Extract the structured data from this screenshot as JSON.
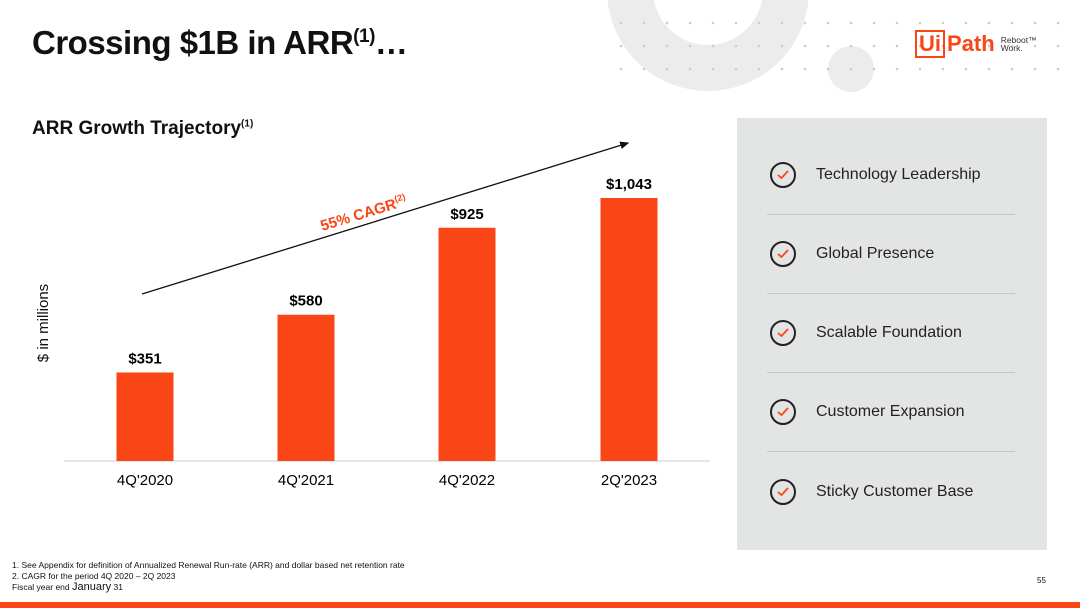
{
  "header": {
    "title": "Crossing $1B in ARR",
    "title_sup": "(1)",
    "title_suffix": "…"
  },
  "logo": {
    "ui": "Ui",
    "path": "Path",
    "tagline1": "Reboot™",
    "tagline2": "Work."
  },
  "chart_data": {
    "type": "bar",
    "title": "ARR Growth Trajectory",
    "title_sup": "(1)",
    "ylabel": "$ in millions",
    "categories": [
      "4Q'2020",
      "4Q'2021",
      "4Q'2022",
      "2Q'2023"
    ],
    "values": [
      351,
      580,
      925,
      1043
    ],
    "data_labels": [
      "$351",
      "$580",
      "$925",
      "$1,043"
    ],
    "annotation": "55% CAGR",
    "annotation_sup": "(2)",
    "bar_color": "#fa4616",
    "ylim": [
      0,
      1100
    ],
    "grid": false
  },
  "panel": {
    "items": [
      {
        "label": "Technology Leadership",
        "icon": "check-circle-icon"
      },
      {
        "label": "Global Presence",
        "icon": "check-circle-icon"
      },
      {
        "label": "Scalable Foundation",
        "icon": "check-circle-icon"
      },
      {
        "label": "Customer Expansion",
        "icon": "check-circle-icon"
      },
      {
        "label": "Sticky Customer Base",
        "icon": "check-circle-icon"
      }
    ]
  },
  "footnotes": {
    "n1": "1.   See Appendix for definition of Annualized Renewal Run-rate (ARR) and dollar based net retention rate",
    "n2": "2.   CAGR for the period 4Q 2020 – 2Q 2023",
    "fiscal_prefix": "Fiscal year end ",
    "fiscal_month": "January",
    "fiscal_day": " 31"
  },
  "page_number": "55",
  "colors": {
    "accent": "#fa4616",
    "panel": "#e3e4e4"
  }
}
